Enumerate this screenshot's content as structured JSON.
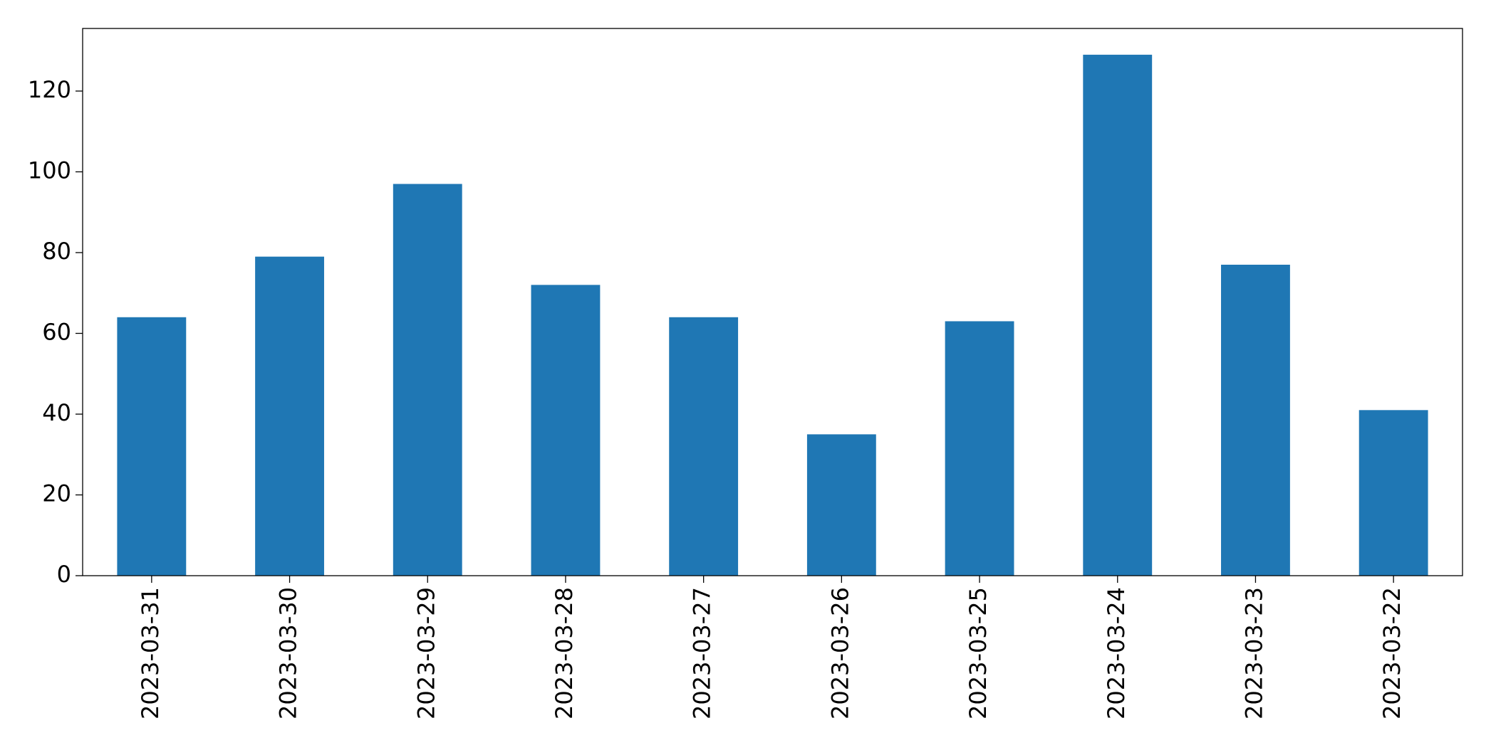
{
  "chart_data": {
    "type": "bar",
    "categories": [
      "2023-03-31",
      "2023-03-30",
      "2023-03-29",
      "2023-03-28",
      "2023-03-27",
      "2023-03-26",
      "2023-03-25",
      "2023-03-24",
      "2023-03-23",
      "2023-03-22"
    ],
    "values": [
      64,
      79,
      97,
      72,
      64,
      35,
      63,
      129,
      77,
      41
    ],
    "color": "#1f77b4",
    "ylim": [
      0,
      135.5
    ],
    "yticks": [
      0,
      20,
      40,
      60,
      80,
      100,
      120
    ],
    "grid": false
  }
}
